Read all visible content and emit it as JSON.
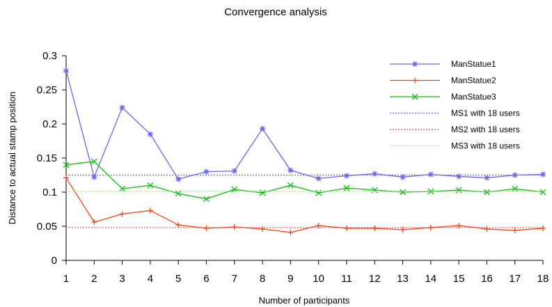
{
  "chart_data": {
    "type": "line",
    "title": "Convergence analysis",
    "xlabel": "Number of participants",
    "ylabel": "Distance to actual stamp position",
    "x": [
      1,
      2,
      3,
      4,
      5,
      6,
      7,
      8,
      9,
      10,
      11,
      12,
      13,
      14,
      15,
      16,
      17,
      18
    ],
    "xlim": [
      1,
      18
    ],
    "ylim": [
      0,
      0.3
    ],
    "yticks": [
      0,
      0.05,
      0.1,
      0.15,
      0.2,
      0.25,
      0.3
    ],
    "ytick_labels": [
      "0",
      "0.05",
      "0.1",
      "0.15",
      "0.2",
      "0.25",
      "0.3"
    ],
    "grid": false,
    "legend_position": "top-right",
    "series": [
      {
        "name": "ManStatue1",
        "color": "#6666ee",
        "marker": "asterisk",
        "style": "solid",
        "values": [
          0.278,
          0.122,
          0.224,
          0.185,
          0.119,
          0.13,
          0.131,
          0.193,
          0.132,
          0.12,
          0.124,
          0.127,
          0.122,
          0.126,
          0.123,
          0.121,
          0.125,
          0.126
        ]
      },
      {
        "name": "ManStatue2",
        "color": "#ee4411",
        "marker": "plus",
        "style": "solid",
        "values": [
          0.121,
          0.056,
          0.068,
          0.073,
          0.052,
          0.047,
          0.049,
          0.046,
          0.041,
          0.051,
          0.047,
          0.047,
          0.045,
          0.048,
          0.051,
          0.046,
          0.044,
          0.047
        ]
      },
      {
        "name": "ManStatue3",
        "color": "#11bb11",
        "marker": "x",
        "style": "solid",
        "values": [
          0.14,
          0.145,
          0.105,
          0.11,
          0.098,
          0.09,
          0.104,
          0.099,
          0.11,
          0.099,
          0.106,
          0.103,
          0.1,
          0.101,
          0.103,
          0.1,
          0.105,
          0.1
        ]
      },
      {
        "name": "MS1 with 18 users",
        "color": "#6666ee",
        "marker": "none",
        "style": "dotted",
        "constant": 0.125
      },
      {
        "name": "MS2 with 18 users",
        "color": "#ee4455",
        "marker": "none",
        "style": "dotted",
        "constant": 0.048
      },
      {
        "name": "MS3 with 18 users",
        "color": "#99ee77",
        "marker": "none",
        "style": "dotted",
        "constant": 0.101
      }
    ]
  }
}
